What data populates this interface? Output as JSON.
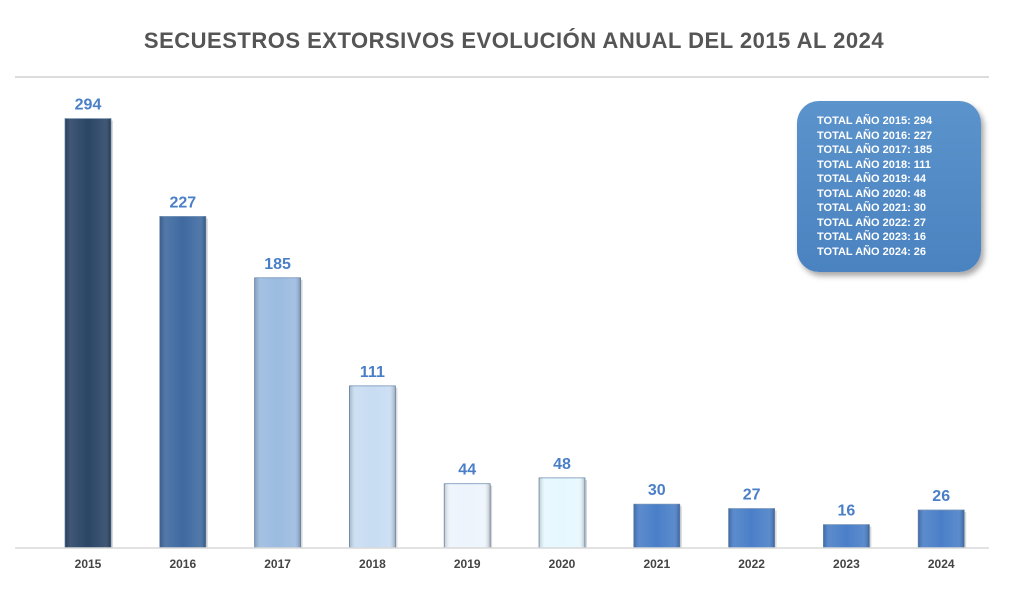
{
  "chart_data": {
    "type": "bar",
    "title": "SECUESTROS EXTORSIVOS EVOLUCIÓN ANUAL DEL 2015 AL 2024",
    "xlabel": "",
    "ylabel": "",
    "ylim": [
      0,
      330
    ],
    "grid": false,
    "categories": [
      "2015",
      "2016",
      "2017",
      "2018",
      "2019",
      "2020",
      "2021",
      "2022",
      "2023",
      "2024"
    ],
    "values": [
      294,
      227,
      185,
      111,
      44,
      48,
      30,
      27,
      16,
      26
    ],
    "bar_colors": [
      "#2b4566",
      "#3f6aa0",
      "#9bbbe0",
      "#c8dcf2",
      "#eef4fc",
      "#e6f8fe",
      "#4a7fc8",
      "#4a7fc8",
      "#4a7fc8",
      "#4a7fc8"
    ],
    "label_color": "#4a7fc8",
    "legend_position": "top-right"
  },
  "legend": {
    "lines": [
      "TOTAL AÑO 2015: 294",
      "TOTAL AÑO 2016: 227",
      "TOTAL AÑO 2017: 185",
      "TOTAL AÑO 2018: 111",
      "TOTAL AÑO 2019: 44",
      "TOTAL AÑO 2020: 48",
      "TOTAL AÑO 2021: 30",
      "TOTAL AÑO 2022: 27",
      "TOTAL AÑO 2023: 16",
      "TOTAL AÑO 2024: 26"
    ]
  }
}
